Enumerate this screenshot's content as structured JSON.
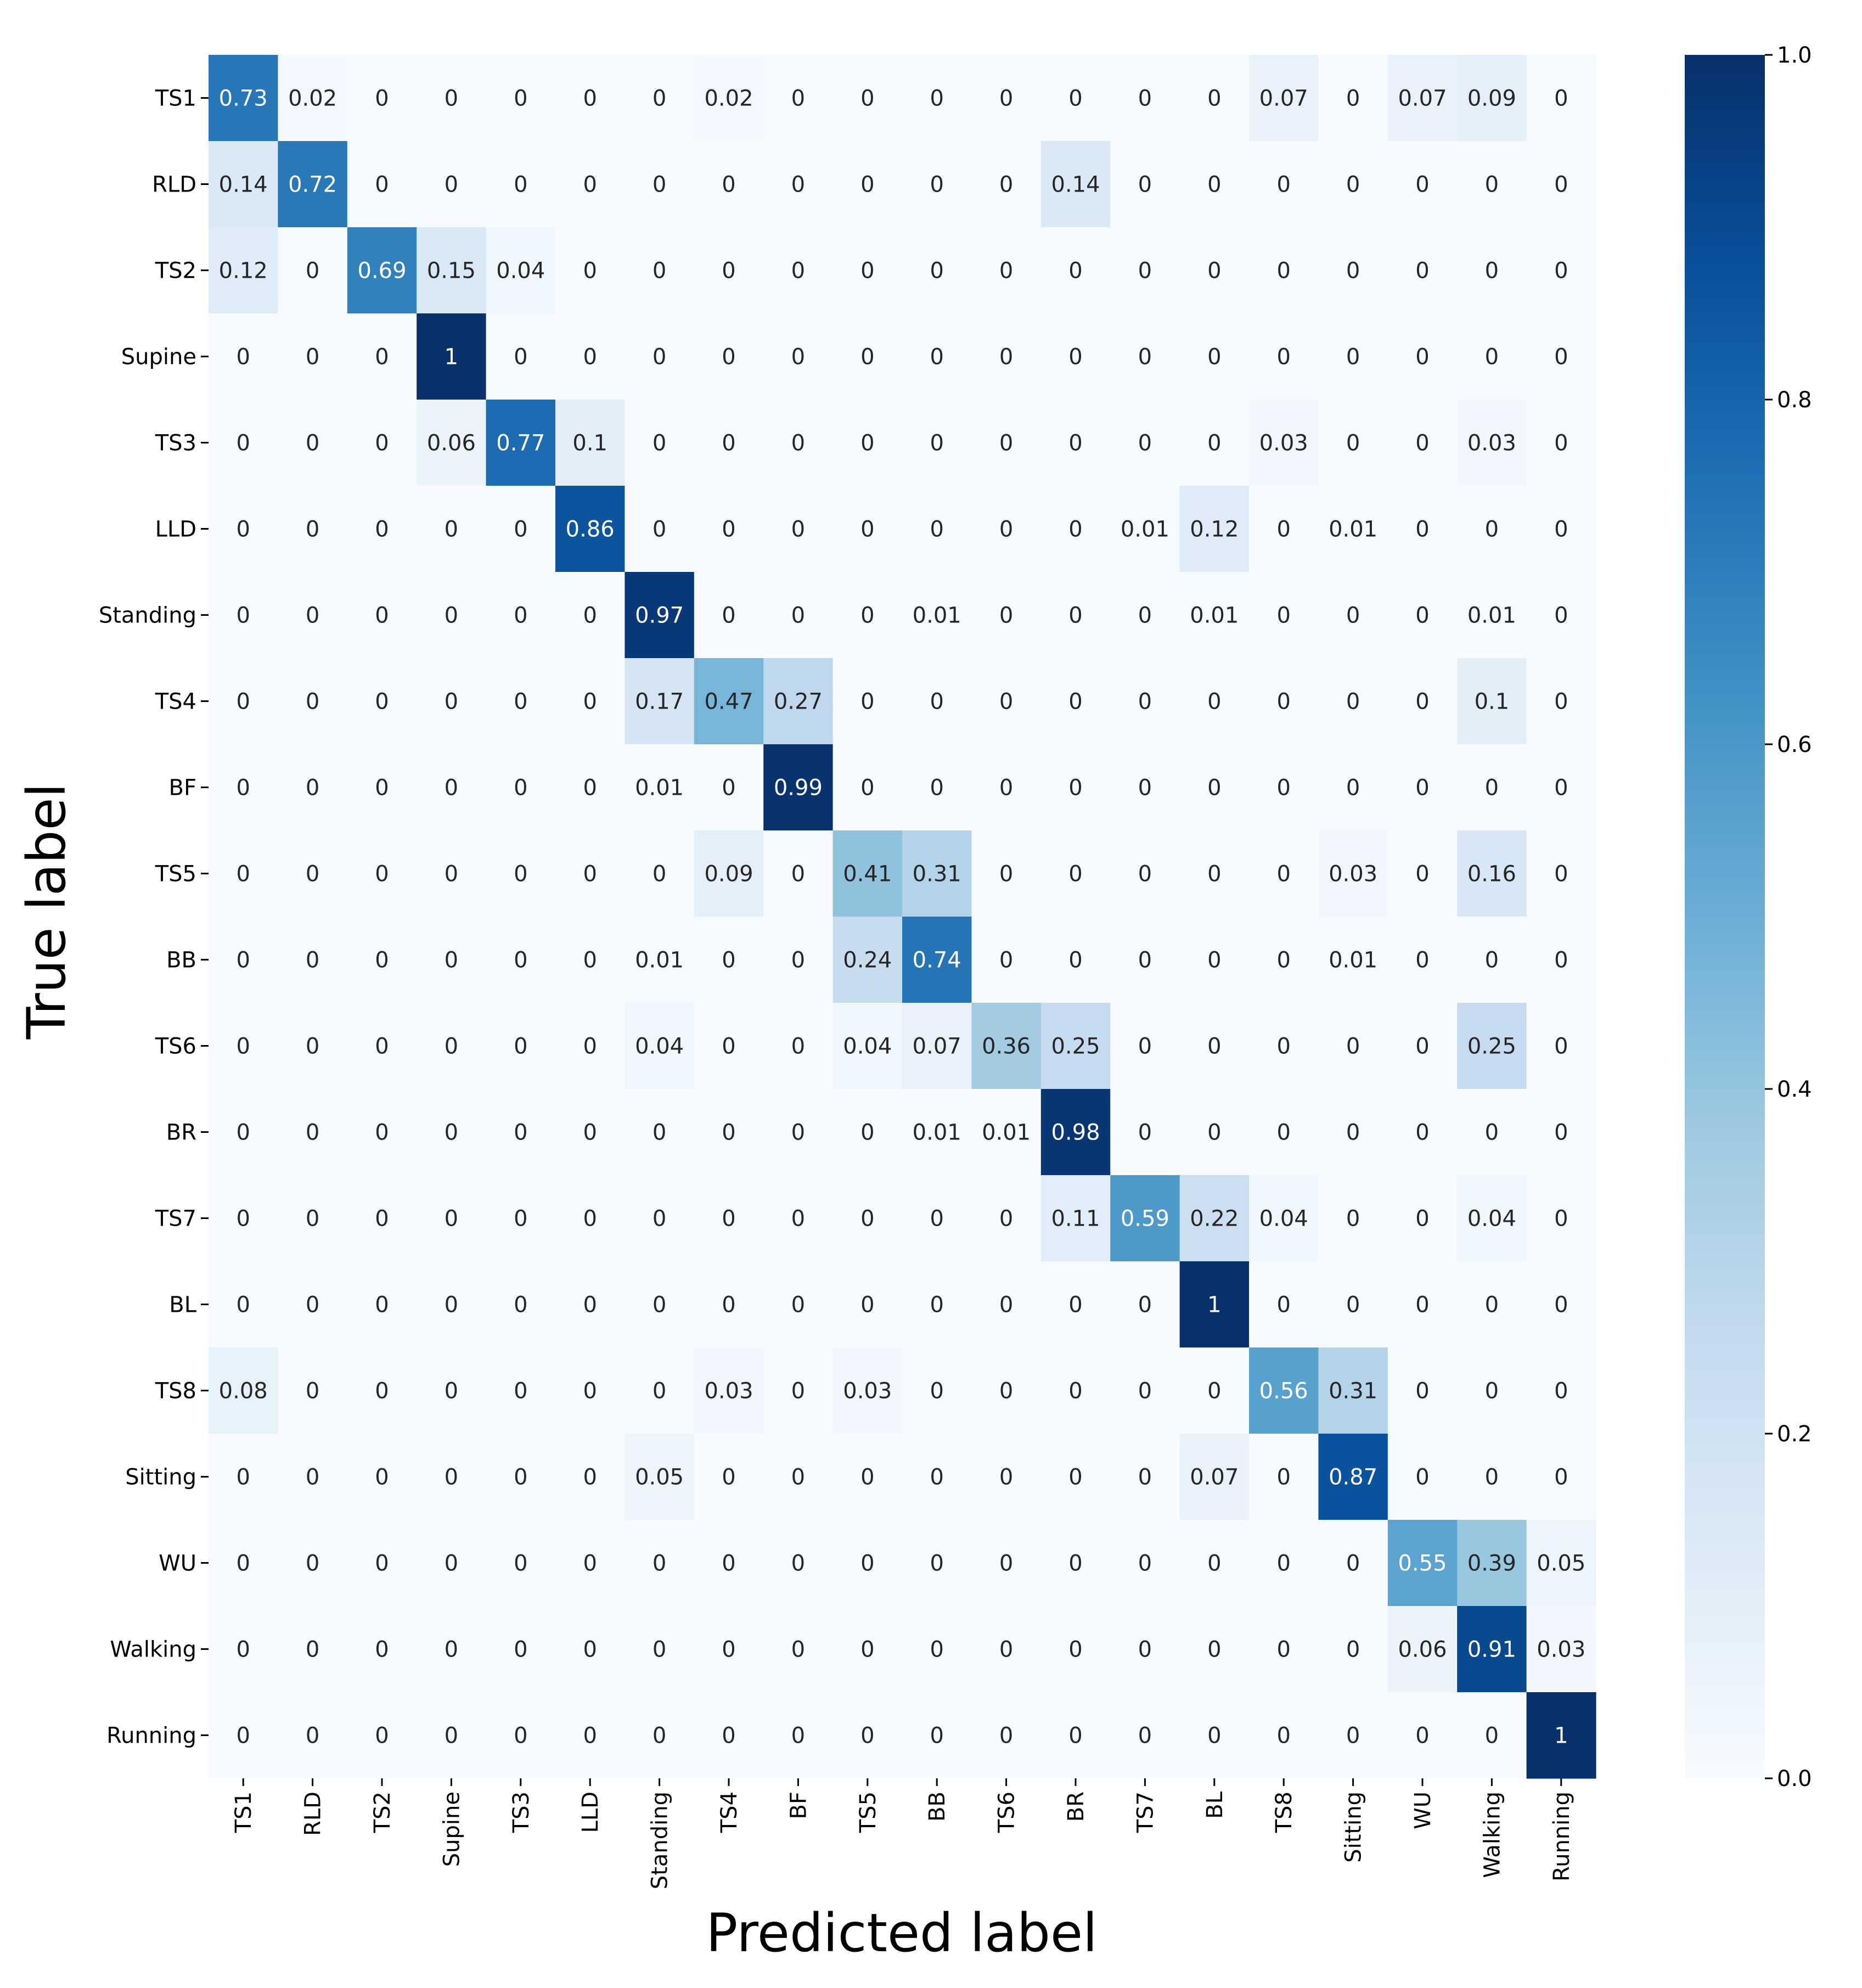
{
  "chart_data": {
    "type": "heatmap",
    "xlabel": "Predicted label",
    "ylabel": "True label",
    "row_labels": [
      "TS1",
      "RLD",
      "TS2",
      "Supine",
      "TS3",
      "LLD",
      "Standing",
      "TS4",
      "BF",
      "TS5",
      "BB",
      "TS6",
      "BR",
      "TS7",
      "BL",
      "TS8",
      "Sitting",
      "WU",
      "Walking",
      "Running"
    ],
    "col_labels": [
      "TS1",
      "RLD",
      "TS2",
      "Supine",
      "TS3",
      "LLD",
      "Standing",
      "TS4",
      "BF",
      "TS5",
      "BB",
      "TS6",
      "BR",
      "TS7",
      "BL",
      "TS8",
      "Sitting",
      "WU",
      "Walking",
      "Running"
    ],
    "values": [
      [
        0.73,
        0.02,
        0,
        0,
        0,
        0,
        0,
        0.02,
        0,
        0,
        0,
        0,
        0,
        0,
        0,
        0.07,
        0,
        0.07,
        0.09,
        0
      ],
      [
        0.14,
        0.72,
        0,
        0,
        0,
        0,
        0,
        0,
        0,
        0,
        0,
        0,
        0.14,
        0,
        0,
        0,
        0,
        0,
        0,
        0
      ],
      [
        0.12,
        0,
        0.69,
        0.15,
        0.04,
        0,
        0,
        0,
        0,
        0,
        0,
        0,
        0,
        0,
        0,
        0,
        0,
        0,
        0,
        0
      ],
      [
        0,
        0,
        0,
        1,
        0,
        0,
        0,
        0,
        0,
        0,
        0,
        0,
        0,
        0,
        0,
        0,
        0,
        0,
        0,
        0
      ],
      [
        0,
        0,
        0,
        0.06,
        0.77,
        0.1,
        0,
        0,
        0,
        0,
        0,
        0,
        0,
        0,
        0,
        0.03,
        0,
        0,
        0.03,
        0
      ],
      [
        0,
        0,
        0,
        0,
        0,
        0.86,
        0,
        0,
        0,
        0,
        0,
        0,
        0,
        0.01,
        0.12,
        0,
        0.01,
        0,
        0,
        0
      ],
      [
        0,
        0,
        0,
        0,
        0,
        0,
        0.97,
        0,
        0,
        0,
        0.01,
        0,
        0,
        0,
        0.01,
        0,
        0,
        0,
        0.01,
        0
      ],
      [
        0,
        0,
        0,
        0,
        0,
        0,
        0.17,
        0.47,
        0.27,
        0,
        0,
        0,
        0,
        0,
        0,
        0,
        0,
        0,
        0.1,
        0
      ],
      [
        0,
        0,
        0,
        0,
        0,
        0,
        0.01,
        0,
        0.99,
        0,
        0,
        0,
        0,
        0,
        0,
        0,
        0,
        0,
        0,
        0
      ],
      [
        0,
        0,
        0,
        0,
        0,
        0,
        0,
        0.09,
        0,
        0.41,
        0.31,
        0,
        0,
        0,
        0,
        0,
        0.03,
        0,
        0.16,
        0
      ],
      [
        0,
        0,
        0,
        0,
        0,
        0,
        0.01,
        0,
        0,
        0.24,
        0.74,
        0,
        0,
        0,
        0,
        0,
        0.01,
        0,
        0,
        0
      ],
      [
        0,
        0,
        0,
        0,
        0,
        0,
        0.04,
        0,
        0,
        0.04,
        0.07,
        0.36,
        0.25,
        0,
        0,
        0,
        0,
        0,
        0.25,
        0
      ],
      [
        0,
        0,
        0,
        0,
        0,
        0,
        0,
        0,
        0,
        0,
        0.01,
        0.01,
        0.98,
        0,
        0,
        0,
        0,
        0,
        0,
        0
      ],
      [
        0,
        0,
        0,
        0,
        0,
        0,
        0,
        0,
        0,
        0,
        0,
        0,
        0.11,
        0.59,
        0.22,
        0.04,
        0,
        0,
        0.04,
        0
      ],
      [
        0,
        0,
        0,
        0,
        0,
        0,
        0,
        0,
        0,
        0,
        0,
        0,
        0,
        0,
        1,
        0,
        0,
        0,
        0,
        0
      ],
      [
        0.08,
        0,
        0,
        0,
        0,
        0,
        0,
        0.03,
        0,
        0.03,
        0,
        0,
        0,
        0,
        0,
        0.56,
        0.31,
        0,
        0,
        0
      ],
      [
        0,
        0,
        0,
        0,
        0,
        0,
        0.05,
        0,
        0,
        0,
        0,
        0,
        0,
        0,
        0.07,
        0,
        0.87,
        0,
        0,
        0
      ],
      [
        0,
        0,
        0,
        0,
        0,
        0,
        0,
        0,
        0,
        0,
        0,
        0,
        0,
        0,
        0,
        0,
        0,
        0.55,
        0.39,
        0.05
      ],
      [
        0,
        0,
        0,
        0,
        0,
        0,
        0,
        0,
        0,
        0,
        0,
        0,
        0,
        0,
        0,
        0,
        0,
        0.06,
        0.91,
        0.03
      ],
      [
        0,
        0,
        0,
        0,
        0,
        0,
        0,
        0,
        0,
        0,
        0,
        0,
        0,
        0,
        0,
        0,
        0,
        0,
        0,
        1
      ]
    ],
    "colorbar": {
      "ticks": [
        0.0,
        0.2,
        0.4,
        0.6,
        0.8,
        1.0
      ],
      "tick_labels": [
        "0.0",
        "0.2",
        "0.4",
        "0.6",
        "0.8",
        "1.0"
      ],
      "range": [
        0,
        1
      ],
      "colormap": "Blues",
      "color_stops": [
        "#f7fbff",
        "#deebf7",
        "#c6dbef",
        "#9ecae1",
        "#6baed6",
        "#4292c6",
        "#2171b5",
        "#08519c",
        "#08306b"
      ]
    },
    "grid": false,
    "legend": "colorbar-right"
  }
}
